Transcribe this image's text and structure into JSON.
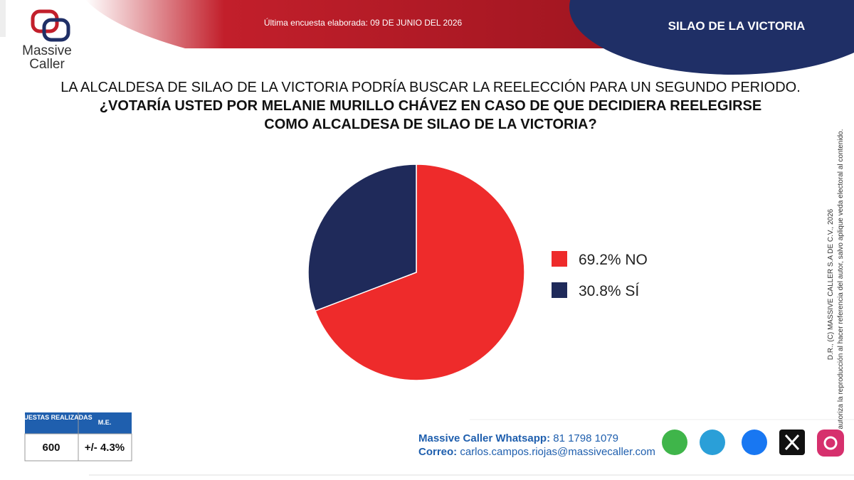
{
  "header": {
    "survey_date": "Última encuesta elaborada: 09 DE JUNIO DEL 2026",
    "region": "SILAO DE LA VICTORIA"
  },
  "logo": {
    "line1": "Massive",
    "line2": "Caller"
  },
  "chart_data": {
    "type": "pie",
    "title": "LA ALCALDESA DE SILAO DE LA VICTORIA PODRÍA BUSCAR LA REELECCIÓN PARA UN SEGUNDO PERIODO.",
    "subtitle": "¿VOTARÍA USTED POR MELANIE MURILLO CHÁVEZ EN CASO DE QUE DECIDIERA REELEGIRSE COMO ALCALDESA DE SILAO DE LA VICTORIA?",
    "categories": [
      "NO",
      "SÍ"
    ],
    "values": [
      69.2,
      30.8
    ],
    "value_labels": [
      "69.2%",
      "30.8%"
    ],
    "colors": [
      "#ee2b2b",
      "#1f2a5a"
    ],
    "legend": "right"
  },
  "table": {
    "headers": [
      "ENCUESTAS REALIZADAS",
      "M.E."
    ],
    "rows": [
      [
        600,
        "+/- 4.3%"
      ]
    ]
  },
  "contact": {
    "whatsapp_label": "Massive Caller Whatsapp:",
    "whatsapp": "81 1798 1079",
    "email_label": "Correo:",
    "email": "carlos.campos.riojas@massivecaller.com"
  },
  "copyright": [
    "D.R., (C) MASSIVE CALLER S.A DE C.V., 2026",
    "Se autoriza la reproducción al hacer referencia del autor, salvo aplique veda electoral al contenido."
  ]
}
